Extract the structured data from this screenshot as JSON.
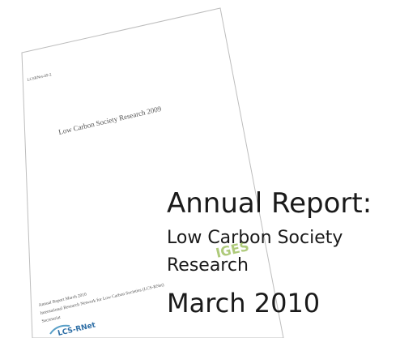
{
  "cover_page": {
    "code": "LCSRNet-09-2",
    "title": "Low Carbon Society Research 2009",
    "footer": [
      "Annual Report March 2010",
      "International Research Network for Low Carbon Societies (LCS-RNet)",
      "Secretariat"
    ],
    "logos": [
      "LCS-RNet",
      "IGES"
    ]
  },
  "overlay": {
    "heading": "Annual Report:",
    "subtitle": [
      "Low Carbon Society",
      "Research"
    ],
    "date": "March 2010"
  }
}
